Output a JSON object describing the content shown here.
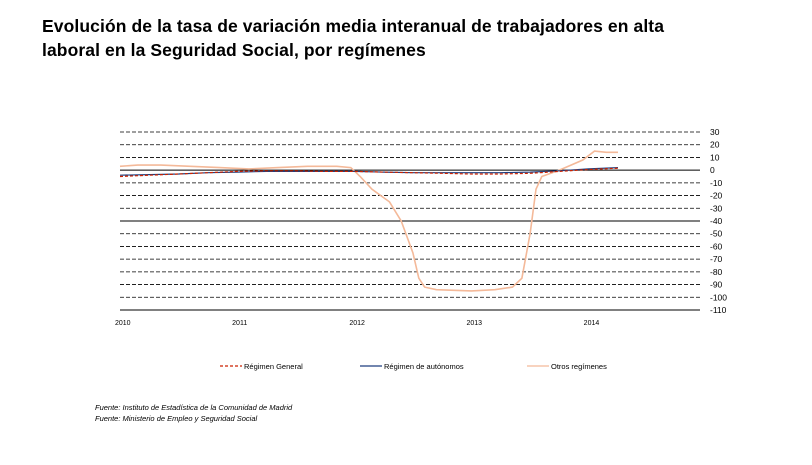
{
  "title_line1": "Evolución de la tasa de variación media interanual de trabajadores en alta",
  "title_line2": "laboral en la Seguridad Social, por  regímenes",
  "sources": [
    "Fuente: Instituto de Estadística de la Comunidad de Madrid",
    "Fuente: Ministerio de Empleo y Seguridad Social"
  ],
  "chart_data": {
    "type": "line",
    "title": "",
    "xlabel": "",
    "ylabel": "",
    "ylim": [
      -110,
      30
    ],
    "yticks": [
      30,
      20,
      10,
      0,
      -10,
      -20,
      -30,
      -40,
      -50,
      -60,
      -70,
      -80,
      -90,
      -100,
      -110
    ],
    "xlim": [
      2010.0,
      2014.95
    ],
    "xticks": [
      {
        "value": 2010,
        "label": "2010"
      },
      {
        "value": 2011,
        "label": "2011"
      },
      {
        "value": 2012,
        "label": "2012"
      },
      {
        "value": 2013,
        "label": "2013"
      },
      {
        "value": 2014,
        "label": "2014"
      }
    ],
    "grid": true,
    "legend_position": "bottom",
    "series": [
      {
        "name": "Régimen General",
        "color": "#cc2200",
        "dash": "3,2",
        "x": [
          2010.0,
          2010.25,
          2010.5,
          2010.75,
          2011.0,
          2011.25,
          2011.5,
          2011.75,
          2012.0,
          2012.25,
          2012.5,
          2012.75,
          2013.0,
          2013.25,
          2013.5,
          2013.75,
          2014.0,
          2014.25
        ],
        "y": [
          -5,
          -4,
          -3,
          -2,
          -1,
          -0.5,
          -0.5,
          -1,
          -1,
          -1.5,
          -2,
          -2.5,
          -3,
          -3,
          -2.5,
          -1,
          0.5,
          1.5
        ]
      },
      {
        "name": "Régimen de autónomos",
        "color": "#1f3f7f",
        "dash": "",
        "x": [
          2010.0,
          2010.25,
          2010.5,
          2010.75,
          2011.0,
          2011.25,
          2011.5,
          2011.75,
          2012.0,
          2012.25,
          2012.5,
          2012.75,
          2013.0,
          2013.25,
          2013.5,
          2013.75,
          2014.0,
          2014.25
        ],
        "y": [
          -4,
          -3.5,
          -3,
          -2,
          -1.5,
          -1,
          -1,
          -1,
          -1,
          -1.5,
          -2,
          -2,
          -2,
          -2,
          -1.5,
          -0.5,
          1,
          2
        ]
      },
      {
        "name": "Otros regímenes",
        "color": "#f4b999",
        "dash": "",
        "x": [
          2010.0,
          2010.15,
          2010.35,
          2010.6,
          2010.85,
          2011.1,
          2011.35,
          2011.6,
          2011.85,
          2011.97,
          2012.05,
          2012.15,
          2012.3,
          2012.4,
          2012.5,
          2012.55,
          2012.6,
          2012.7,
          2013.0,
          2013.2,
          2013.35,
          2013.43,
          2013.5,
          2013.55,
          2013.6,
          2013.75,
          2013.95,
          2014.05,
          2014.15,
          2014.25
        ],
        "y": [
          3,
          4,
          4,
          3,
          2,
          1,
          2,
          3,
          3,
          2,
          -5,
          -15,
          -25,
          -40,
          -65,
          -85,
          -92,
          -94,
          -95,
          -94,
          -92,
          -85,
          -50,
          -15,
          -5,
          0,
          8,
          15,
          14,
          14
        ]
      }
    ]
  }
}
